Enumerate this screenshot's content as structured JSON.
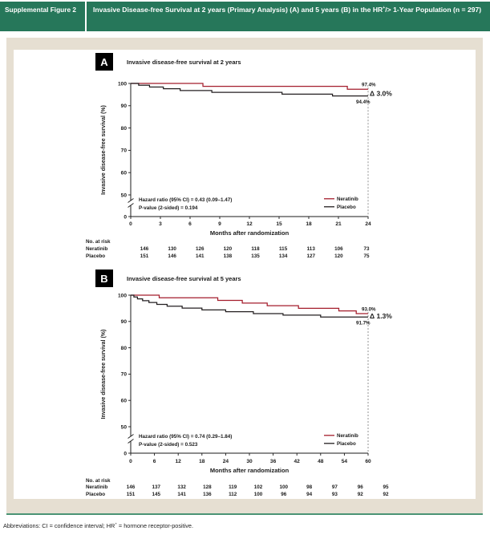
{
  "header": {
    "label": "Supplemental Figure 2",
    "title_pre": "Invasive Disease-free Survival at 2 years (Primary Analysis) (A) and 5 years (B) in the HR",
    "title_sup": "+",
    "title_post": "/> 1-Year Population (n = 297)"
  },
  "footer": {
    "pre": "Abbreviations: CI = confidence interval; HR",
    "sup": "+",
    "post": " = hormone receptor-positive."
  },
  "colors": {
    "header_green": "#26775a",
    "frame_beige": "#e6dfd2",
    "bottom_rule_green": "#4b9474",
    "neratinib_red": "#a41d2c",
    "placebo_black": "#231f20",
    "dashed_line": "#888888"
  },
  "chart_data": [
    {
      "panel_label": "A",
      "title": "Invasive disease-free survival at 2 years",
      "type": "line",
      "subtype": "kaplan-meier-step",
      "xlabel": "Months after randomization",
      "ylabel": "Invasive disease-free survival (%)",
      "xticks": [
        0,
        3,
        6,
        9,
        12,
        15,
        18,
        21,
        24
      ],
      "xlim": [
        0,
        24
      ],
      "yticks": [
        0,
        50,
        60,
        70,
        80,
        90,
        100
      ],
      "axis_break": true,
      "grid": false,
      "legend_position": "bottom-right-inside",
      "series": [
        {
          "name": "Neratinib",
          "color": "#a41d2c",
          "end_value_label": "97.4%",
          "steps": [
            [
              0,
              100
            ],
            [
              7.3,
              98.7
            ],
            [
              21.9,
              97.4
            ]
          ]
        },
        {
          "name": "Placebo",
          "color": "#231f20",
          "end_value_label": "94.4%",
          "steps": [
            [
              0,
              100
            ],
            [
              0.8,
              99.2
            ],
            [
              1.9,
              98.4
            ],
            [
              3.3,
              97.6
            ],
            [
              5.0,
              96.8
            ],
            [
              8.2,
              96.0
            ],
            [
              15.3,
              95.2
            ],
            [
              20.4,
              94.4
            ]
          ]
        }
      ],
      "delta_label": "Δ 3.0%",
      "stats": [
        "Hazard ratio (95% CI) = 0.43 (0.09–1.47)",
        "P-value (2-sided) = 0.194"
      ],
      "risk_table": {
        "title": "No. at risk",
        "rows": [
          {
            "name": "Neratinib",
            "values": [
              "146",
              "130",
              "126",
              "120",
              "118",
              "115",
              "113",
              "106",
              "73"
            ]
          },
          {
            "name": "Placebo",
            "values": [
              "151",
              "146",
              "141",
              "138",
              "135",
              "134",
              "127",
              "120",
              "75"
            ]
          }
        ]
      }
    },
    {
      "panel_label": "B",
      "title": "Invasive disease-free survival at 5 years",
      "type": "line",
      "subtype": "kaplan-meier-step",
      "xlabel": "Months after randomization",
      "ylabel": "Invasive disease-free survival (%)",
      "xticks": [
        0,
        6,
        12,
        18,
        24,
        30,
        36,
        42,
        48,
        54,
        60
      ],
      "xlim": [
        0,
        60
      ],
      "yticks": [
        0,
        50,
        60,
        70,
        80,
        90,
        100
      ],
      "axis_break": true,
      "grid": false,
      "legend_position": "bottom-right-inside",
      "series": [
        {
          "name": "Neratinib",
          "color": "#a41d2c",
          "end_value_label": "93.0%",
          "steps": [
            [
              0,
              100
            ],
            [
              7.2,
              99.0
            ],
            [
              22.0,
              98.0
            ],
            [
              28.2,
              97.0
            ],
            [
              34.5,
              96.0
            ],
            [
              42.4,
              95.0
            ],
            [
              52.6,
              94.0
            ],
            [
              57.0,
              93.0
            ]
          ]
        },
        {
          "name": "Placebo",
          "color": "#231f20",
          "end_value_label": "91.7%",
          "steps": [
            [
              0,
              100
            ],
            [
              0.8,
              99.3
            ],
            [
              1.7,
              98.6
            ],
            [
              3.0,
              97.9
            ],
            [
              4.6,
              97.2
            ],
            [
              6.6,
              96.5
            ],
            [
              9.2,
              95.8
            ],
            [
              13.0,
              95.1
            ],
            [
              18.0,
              94.4
            ],
            [
              24.0,
              93.7
            ],
            [
              31.0,
              93.0
            ],
            [
              38.5,
              92.4
            ],
            [
              48.0,
              91.7
            ]
          ]
        }
      ],
      "delta_label": "Δ 1.3%",
      "stats": [
        "Hazard ratio (95% CI) = 0.74 (0.29–1.84)",
        "P-value (2-sided) = 0.523"
      ],
      "risk_table": {
        "title": "No. at risk",
        "rows": [
          {
            "name": "Neratinib",
            "values": [
              "146",
              "137",
              "132",
              "128",
              "119",
              "102",
              "100",
              "98",
              "97",
              "96",
              "95"
            ]
          },
          {
            "name": "Placebo",
            "values": [
              "151",
              "145",
              "141",
              "136",
              "112",
              "100",
              "96",
              "94",
              "93",
              "92",
              "92"
            ]
          }
        ]
      }
    }
  ]
}
